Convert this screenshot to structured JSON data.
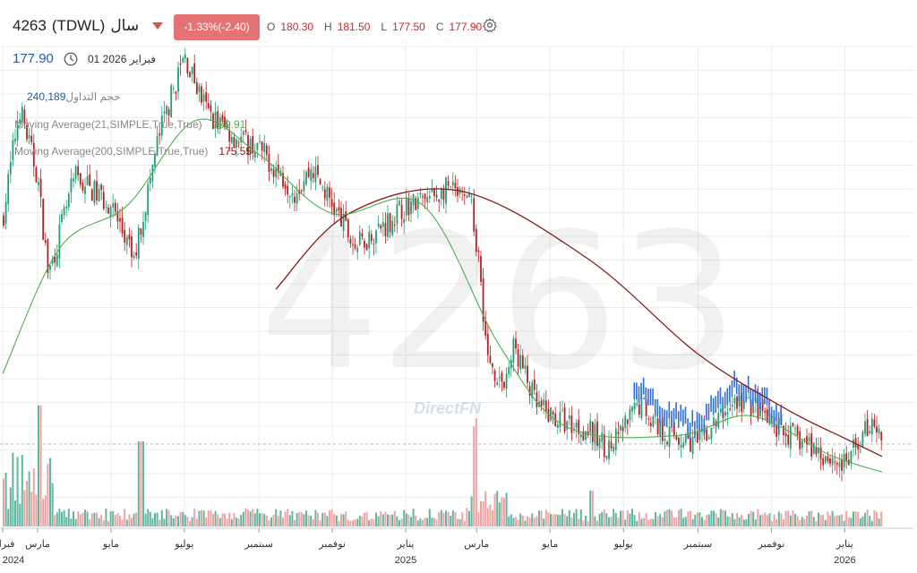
{
  "header": {
    "symbol": "4263",
    "ticker": "(TDWL)",
    "currency": "سال",
    "change_text": "-1.33%(-2.40)",
    "ohlc": [
      {
        "key": "O",
        "value": "180.30"
      },
      {
        "key": "H",
        "value": "181.50"
      },
      {
        "key": "L",
        "value": "177.50"
      },
      {
        "key": "C",
        "value": "177.90"
      }
    ],
    "price": "177.90",
    "date": "01 2026 فبراير",
    "icons": {
      "change": "caret-down-icon",
      "settings": "gear-icon",
      "date": "clock-icon"
    }
  },
  "indicators": {
    "volume_label": "حجم التداول",
    "volume_value": "240,189",
    "ma21_label": "Moving Average(21,SIMPLE,True,True)",
    "ma21_value": "169.91",
    "ma200_label": "Moving Average(200,SIMPLE,True,True)",
    "ma200_value": "175.55"
  },
  "watermark": {
    "text": "4263",
    "brand": "DirectFN"
  },
  "colors": {
    "up": "#1f9e77",
    "down": "#b22222",
    "ma21": "#4caf50",
    "ma200": "#8b1a1a",
    "bullish_overlay": "#2f6fd6",
    "volume_up": "#5fb7a1",
    "volume_down": "#f0a3a3"
  },
  "chart_data": {
    "type": "candlestick",
    "title": "4263 (TDWL)",
    "x_tick_labels": [
      "فبراير",
      "مارس",
      "مايو",
      "يوليو",
      "سبتمبر",
      "نوفمبر",
      "يناير",
      "مارس",
      "مايو",
      "يوليو",
      "سبتمبر",
      "نوفمبر",
      "يناير"
    ],
    "year_labels": [
      "2024",
      "2025",
      "2026"
    ],
    "y_range_approx": [
      150,
      320
    ],
    "last_close": 177.9,
    "price_path": [
      [
        "2024-02-01",
        260
      ],
      [
        "2024-02-15",
        300
      ],
      [
        "2024-03-01",
        275
      ],
      [
        "2024-03-10",
        240
      ],
      [
        "2024-04-01",
        275
      ],
      [
        "2024-05-01",
        265
      ],
      [
        "2024-05-20",
        245
      ],
      [
        "2024-06-10",
        290
      ],
      [
        "2024-07-01",
        318
      ],
      [
        "2024-07-20",
        298
      ],
      [
        "2024-08-10",
        290
      ],
      [
        "2024-09-01",
        285
      ],
      [
        "2024-10-01",
        270
      ],
      [
        "2024-10-15",
        278
      ],
      [
        "2024-11-01",
        265
      ],
      [
        "2024-11-20",
        250
      ],
      [
        "2024-12-20",
        260
      ],
      [
        "2025-01-01",
        265
      ],
      [
        "2025-01-20",
        267
      ],
      [
        "2025-02-05",
        271
      ],
      [
        "2025-02-25",
        264
      ],
      [
        "2025-03-03",
        245
      ],
      [
        "2025-03-10",
        210
      ],
      [
        "2025-03-25",
        200
      ],
      [
        "2025-04-01",
        215
      ],
      [
        "2025-04-20",
        193
      ],
      [
        "2025-05-01",
        190
      ],
      [
        "2025-06-01",
        185
      ],
      [
        "2025-06-20",
        178
      ],
      [
        "2025-07-15",
        195
      ],
      [
        "2025-08-01",
        185
      ],
      [
        "2025-09-01",
        180
      ],
      [
        "2025-10-01",
        195
      ],
      [
        "2025-10-20",
        193
      ],
      [
        "2025-11-01",
        186
      ],
      [
        "2025-12-01",
        180
      ],
      [
        "2026-01-01",
        172
      ],
      [
        "2026-01-15",
        182
      ],
      [
        "2026-01-25",
        190
      ],
      [
        "2026-02-01",
        177.9
      ]
    ],
    "series": [
      {
        "name": "Moving Average(21,SIMPLE,True,True)",
        "last_value": 169.91,
        "values": [
          [
            "2024-02-01",
            205
          ],
          [
            "2024-03-20",
            250
          ],
          [
            "2024-05-15",
            265
          ],
          [
            "2024-07-10",
            295
          ],
          [
            "2024-09-01",
            283
          ],
          [
            "2024-11-01",
            262
          ],
          [
            "2025-01-15",
            265
          ],
          [
            "2025-03-20",
            215
          ],
          [
            "2025-05-15",
            186
          ],
          [
            "2025-08-15",
            183
          ],
          [
            "2025-10-15",
            190
          ],
          [
            "2025-12-20",
            176
          ],
          [
            "2026-02-01",
            170
          ]
        ]
      },
      {
        "name": "Moving Average(200,SIMPLE,True,True)",
        "last_value": 175.55,
        "values": [
          [
            "2024-09-15",
            235
          ],
          [
            "2024-11-15",
            262
          ],
          [
            "2025-02-15",
            270
          ],
          [
            "2025-06-01",
            246
          ],
          [
            "2025-09-01",
            212
          ],
          [
            "2025-11-15",
            192
          ],
          [
            "2026-01-01",
            182
          ],
          [
            "2026-02-01",
            175.55
          ]
        ]
      }
    ],
    "volume": {
      "last_value": 240189
    }
  }
}
